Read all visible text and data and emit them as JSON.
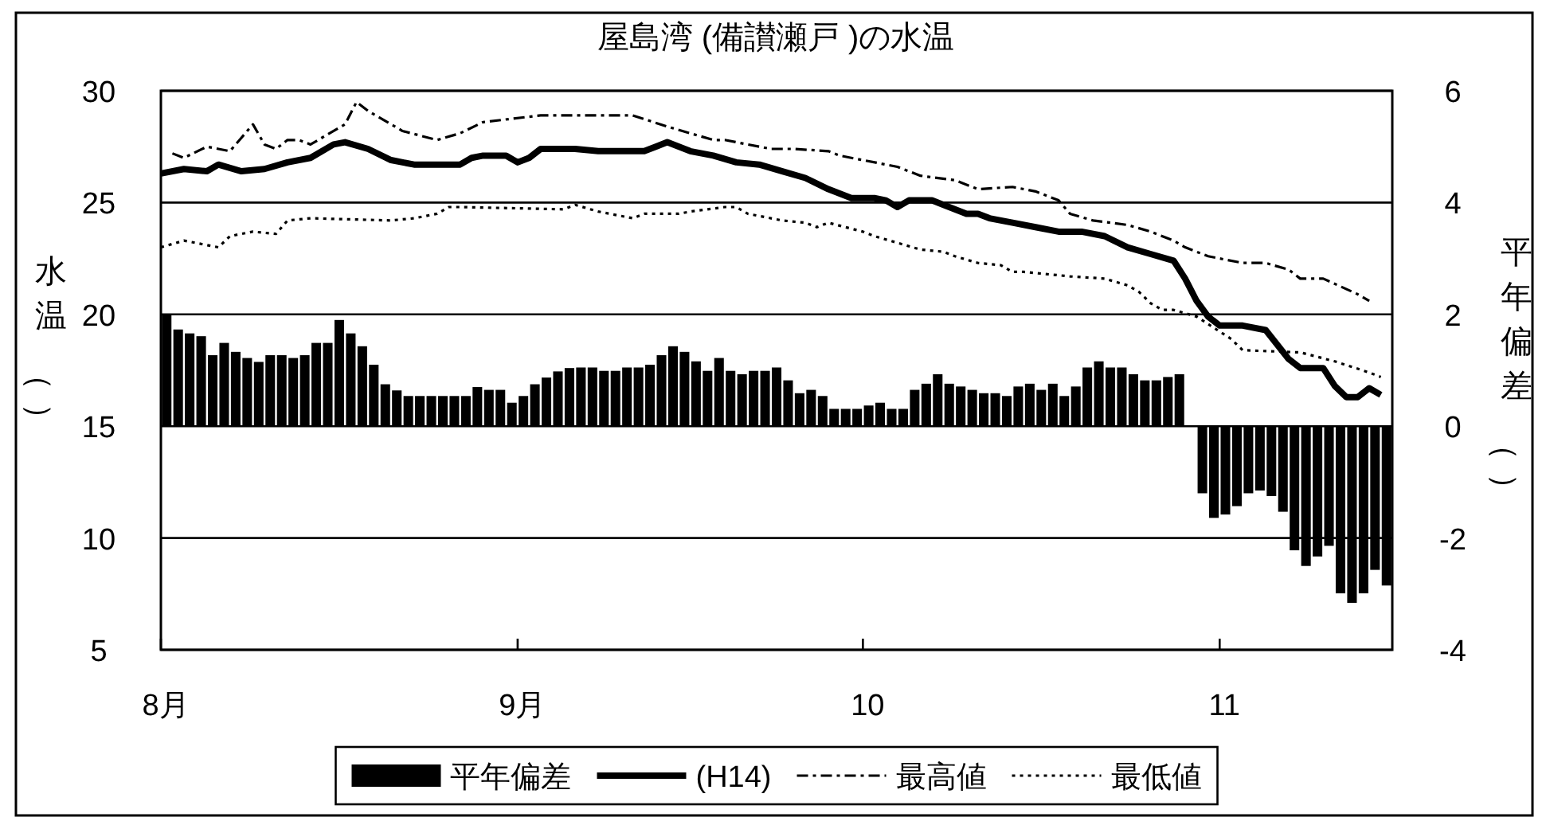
{
  "chart_data": {
    "type": "line",
    "title": "屋島湾 (備讃瀬戸 )の水温",
    "ylabel": "水温（）",
    "y2label": "平年偏差（）",
    "xlim": [
      "--08-01",
      "--11-16"
    ],
    "xticks": [
      {
        "value": "--08-01",
        "label": "8月"
      },
      {
        "value": "--09-01",
        "label": "9月"
      },
      {
        "value": "--10-01",
        "label": "10"
      },
      {
        "value": "--11-01",
        "label": "11"
      }
    ],
    "ylim": [
      5,
      30
    ],
    "yticks": [
      5,
      10,
      15,
      20,
      25,
      30
    ],
    "y2lim": [
      -4,
      6
    ],
    "y2ticks": [
      -4,
      -2,
      0,
      2,
      4,
      6
    ],
    "grid": "y",
    "legend": "bottom",
    "x": [
      "--08-01",
      "--08-02",
      "--08-03",
      "--08-04",
      "--08-05",
      "--08-06",
      "--08-07",
      "--08-08",
      "--08-09",
      "--08-10",
      "--08-11",
      "--08-12",
      "--08-13",
      "--08-14",
      "--08-15",
      "--08-16",
      "--08-17",
      "--08-18",
      "--08-19",
      "--08-20",
      "--08-21",
      "--08-22",
      "--08-23",
      "--08-24",
      "--08-25",
      "--08-26",
      "--08-27",
      "--08-28",
      "--08-29",
      "--08-30",
      "--08-31",
      "--09-01",
      "--09-02",
      "--09-03",
      "--09-04",
      "--09-05",
      "--09-06",
      "--09-07",
      "--09-08",
      "--09-09",
      "--09-10",
      "--09-11",
      "--09-12",
      "--09-13",
      "--09-14",
      "--09-15",
      "--09-16",
      "--09-17",
      "--09-18",
      "--09-19",
      "--09-20",
      "--09-21",
      "--09-22",
      "--09-23",
      "--09-24",
      "--09-25",
      "--09-26",
      "--09-27",
      "--09-28",
      "--09-29",
      "--09-30",
      "--10-01",
      "--10-02",
      "--10-03",
      "--10-04",
      "--10-05",
      "--10-06",
      "--10-07",
      "--10-08",
      "--10-09",
      "--10-10",
      "--10-11",
      "--10-12",
      "--10-13",
      "--10-14",
      "--10-15",
      "--10-16",
      "--10-17",
      "--10-18",
      "--10-19",
      "--10-20",
      "--10-21",
      "--10-22",
      "--10-23",
      "--10-24",
      "--10-25",
      "--10-26",
      "--10-27",
      "--10-28",
      "--10-29",
      "--10-30",
      "--10-31",
      "--11-01",
      "--11-02",
      "--11-03",
      "--11-04",
      "--11-05",
      "--11-06",
      "--11-07",
      "--11-08",
      "--11-09",
      "--11-10",
      "--11-11",
      "--11-12",
      "--11-13",
      "--11-14",
      "--11-15"
    ],
    "series": [
      {
        "name": "平年偏差",
        "type": "bar",
        "axis": "y2",
        "color": "#000000",
        "values": [
          2.0,
          1.73,
          1.66,
          1.61,
          1.27,
          1.49,
          1.33,
          1.22,
          1.15,
          1.27,
          1.27,
          1.22,
          1.27,
          1.49,
          1.49,
          1.9,
          1.66,
          1.43,
          1.1,
          0.75,
          0.64,
          0.54,
          0.54,
          0.54,
          0.54,
          0.54,
          0.54,
          0.7,
          0.65,
          0.65,
          0.42,
          0.54,
          0.75,
          0.87,
          0.98,
          1.04,
          1.05,
          1.05,
          0.99,
          0.99,
          1.05,
          1.05,
          1.1,
          1.27,
          1.43,
          1.33,
          1.16,
          0.99,
          1.22,
          0.99,
          0.93,
          0.99,
          0.99,
          1.05,
          0.82,
          0.59,
          0.65,
          0.54,
          0.31,
          0.31,
          0.31,
          0.37,
          0.42,
          0.31,
          0.31,
          0.65,
          0.76,
          0.93,
          0.76,
          0.71,
          0.65,
          0.59,
          0.59,
          0.54,
          0.71,
          0.76,
          0.65,
          0.76,
          0.54,
          0.71,
          1.05,
          1.16,
          1.05,
          1.05,
          0.93,
          0.82,
          0.82,
          0.88,
          0.93,
          null,
          -1.2,
          -1.64,
          -1.58,
          -1.43,
          -1.2,
          -1.15,
          -1.25,
          -1.53,
          -2.22,
          -2.5,
          -2.33,
          -2.14,
          -2.99,
          -3.16,
          -2.99,
          -2.57,
          -2.85
        ]
      },
      {
        "name": "(H14)",
        "color": "#000000",
        "line_style": "solid",
        "x": [
          "--08-01",
          "--08-03",
          "--08-05",
          "--08-06",
          "--08-08",
          "--08-10",
          "--08-12",
          "--08-14",
          "--08-16",
          "--08-17",
          "--08-19",
          "--08-21",
          "--08-23",
          "--08-25",
          "--08-27",
          "--08-28",
          "--08-29",
          "--08-31",
          "--09-01",
          "--09-02",
          "--09-03",
          "--09-05",
          "--09-06",
          "--09-08",
          "--09-10",
          "--09-12",
          "--09-13",
          "--09-14",
          "--09-16",
          "--09-18",
          "--09-20",
          "--09-22",
          "--09-24",
          "--09-26",
          "--09-28",
          "--09-30",
          "--10-02",
          "--10-03",
          "--10-04",
          "--10-05",
          "--10-07",
          "--10-08",
          "--10-10",
          "--10-11",
          "--10-12",
          "--10-14",
          "--10-16",
          "--10-18",
          "--10-20",
          "--10-22",
          "--10-24",
          "--10-26",
          "--10-28",
          "--10-29",
          "--10-30",
          "--10-31",
          "--11-01",
          "--11-03",
          "--11-05",
          "--11-07",
          "--11-08",
          "--11-10",
          "--11-11",
          "--11-12",
          "--11-13",
          "--11-14",
          "--11-15"
        ],
        "values": [
          26.3,
          26.5,
          26.4,
          26.7,
          26.4,
          26.5,
          26.8,
          27.0,
          27.6,
          27.7,
          27.4,
          26.9,
          26.7,
          26.7,
          26.7,
          27.0,
          27.1,
          27.1,
          26.8,
          27.0,
          27.4,
          27.4,
          27.4,
          27.3,
          27.3,
          27.3,
          27.5,
          27.7,
          27.3,
          27.1,
          26.8,
          26.7,
          26.4,
          26.1,
          25.6,
          25.2,
          25.2,
          25.1,
          24.8,
          25.1,
          25.1,
          24.9,
          24.5,
          24.5,
          24.3,
          24.1,
          23.9,
          23.7,
          23.7,
          23.5,
          23.0,
          22.7,
          22.4,
          21.6,
          20.6,
          19.9,
          19.5,
          19.5,
          19.3,
          18.0,
          17.6,
          17.6,
          16.8,
          16.3,
          16.3,
          16.7,
          16.4
        ]
      },
      {
        "name": "最高値",
        "color": "#000000",
        "line_style": "dashed",
        "x": [
          "--08-02",
          "--08-03",
          "--08-05",
          "--08-06",
          "--08-07",
          "--08-08",
          "--08-09",
          "--08-10",
          "--08-11",
          "--08-12",
          "--08-13",
          "--08-14",
          "--08-17",
          "--08-18",
          "--08-19",
          "--08-21",
          "--08-22",
          "--08-25",
          "--08-27",
          "--08-29",
          "--09-03",
          "--09-05",
          "--09-08",
          "--09-11",
          "--09-14",
          "--09-16",
          "--09-18",
          "--09-19",
          "--09-21",
          "--09-23",
          "--09-25",
          "--09-28",
          "--09-29",
          "--10-03",
          "--10-04",
          "--10-06",
          "--10-09",
          "--10-11",
          "--10-14",
          "--10-16",
          "--10-18",
          "--10-19",
          "--10-21",
          "--10-24",
          "--10-26",
          "--10-28",
          "--10-29",
          "--10-31",
          "--11-03",
          "--11-05",
          "--11-07",
          "--11-08",
          "--11-10",
          "--11-13",
          "--11-14"
        ],
        "values": [
          27.2,
          27.0,
          27.5,
          27.4,
          27.3,
          27.9,
          28.5,
          27.6,
          27.4,
          27.8,
          27.8,
          27.6,
          28.5,
          29.5,
          29.1,
          28.5,
          28.2,
          27.8,
          28.1,
          28.6,
          28.9,
          28.9,
          28.9,
          28.9,
          28.4,
          28.1,
          27.8,
          27.8,
          27.6,
          27.4,
          27.4,
          27.3,
          27.1,
          26.7,
          26.6,
          26.2,
          26.0,
          25.6,
          25.7,
          25.5,
          25.1,
          24.5,
          24.2,
          24.0,
          23.7,
          23.3,
          23.0,
          22.6,
          22.3,
          22.3,
          22.0,
          21.6,
          21.6,
          20.9,
          20.6
        ]
      },
      {
        "name": "最低値",
        "color": "#000000",
        "line_style": "dotted",
        "x": [
          "--08-01",
          "--08-03",
          "--08-06",
          "--08-07",
          "--08-09",
          "--08-11",
          "--08-12",
          "--08-14",
          "--08-21",
          "--08-23",
          "--08-25",
          "--08-26",
          "--08-27",
          "--09-05",
          "--09-06",
          "--09-08",
          "--09-09",
          "--09-11",
          "--09-12",
          "--09-15",
          "--09-16",
          "--09-19",
          "--09-20",
          "--09-21",
          "--09-24",
          "--09-26",
          "--09-27",
          "--09-28",
          "--10-01",
          "--10-02",
          "--10-06",
          "--10-08",
          "--10-09",
          "--10-11",
          "--10-13",
          "--10-14",
          "--10-15",
          "--10-19",
          "--10-22",
          "--10-24",
          "--10-25",
          "--10-26",
          "--10-27",
          "--10-28",
          "--10-30",
          "--11-02",
          "--11-03",
          "--11-08",
          "--11-11",
          "--11-14",
          "--11-15"
        ],
        "values": [
          23.0,
          23.3,
          23.0,
          23.5,
          23.7,
          23.6,
          24.2,
          24.3,
          24.2,
          24.3,
          24.5,
          24.8,
          24.8,
          24.7,
          24.9,
          24.6,
          24.5,
          24.3,
          24.5,
          24.5,
          24.6,
          24.8,
          24.8,
          24.5,
          24.2,
          24.1,
          23.9,
          24.1,
          23.7,
          23.5,
          22.9,
          22.8,
          22.6,
          22.3,
          22.2,
          21.9,
          21.9,
          21.7,
          21.6,
          21.3,
          21.0,
          20.5,
          20.2,
          20.2,
          19.9,
          18.9,
          18.4,
          18.3,
          17.9,
          17.4,
          17.2
        ]
      }
    ]
  }
}
